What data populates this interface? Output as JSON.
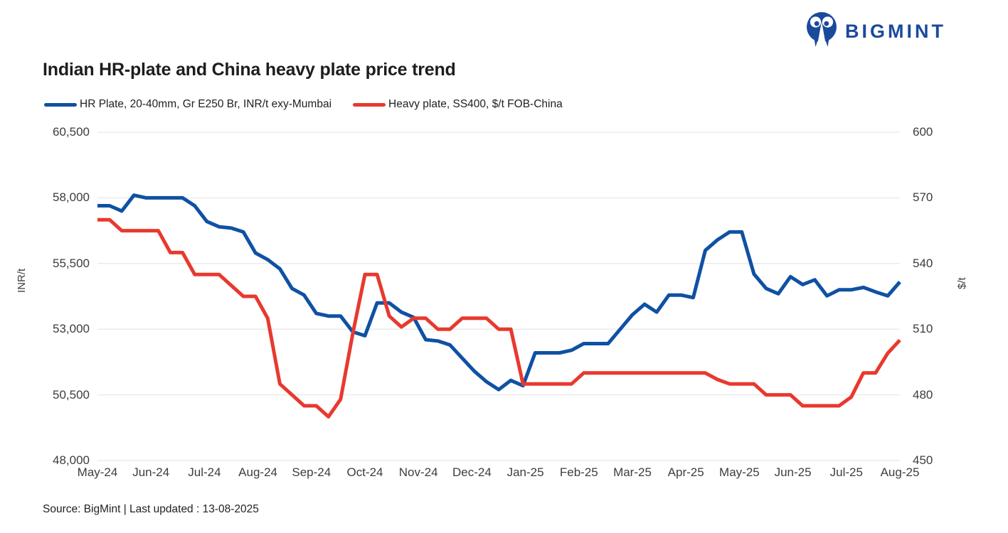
{
  "brand": {
    "name": "BIGMINT",
    "logo_color": "#1B4A9B"
  },
  "title": "Indian HR-plate and China heavy plate price trend",
  "legend": [
    {
      "label": "HR Plate, 20-40mm, Gr E250 Br, INR/t exy-Mumbai",
      "color": "#0F51A3"
    },
    {
      "label": "Heavy plate, SS400, $/t FOB-China",
      "color": "#E8392F"
    }
  ],
  "footer": "Source: BigMint | Last updated : 13-08-2025",
  "chart_data": {
    "type": "line",
    "title": "Indian HR-plate and China heavy plate price trend",
    "grid": "horizontal",
    "grid_color": "#EBEBEB",
    "legend_position": "top-left",
    "x_frequency": "weekly",
    "x_tick_labels": [
      "May-24",
      "Jun-24",
      "Jul-24",
      "Aug-24",
      "Sep-24",
      "Oct-24",
      "Nov-24",
      "Dec-24",
      "Jan-25",
      "Feb-25",
      "Mar-25",
      "Apr-25",
      "May-25",
      "Jun-25",
      "Jul-25",
      "Aug-25"
    ],
    "left_axis": {
      "label": "INR/t",
      "min": 48000,
      "max": 60500,
      "ticks": [
        "60,500",
        "58,000",
        "55,500",
        "53,000",
        "50,500",
        "48,000"
      ]
    },
    "right_axis": {
      "label": "$/t",
      "min": 450,
      "max": 600,
      "ticks": [
        "600",
        "570",
        "540",
        "510",
        "480",
        "450"
      ]
    },
    "series": [
      {
        "id": "hr-plate",
        "name": "HR Plate, 20-40mm, Gr E250 Br, INR/t exy-Mumbai",
        "axis": "left",
        "unit": "INR/t",
        "color": "#0F51A3",
        "values": [
          57700,
          57700,
          57500,
          58100,
          58000,
          58000,
          58000,
          58000,
          57700,
          57100,
          56900,
          56850,
          56700,
          55900,
          55650,
          55300,
          54550,
          54300,
          53600,
          53500,
          53500,
          52900,
          52750,
          54000,
          54000,
          53650,
          53450,
          52600,
          52550,
          52400,
          51900,
          51400,
          51000,
          50700,
          51050,
          50850,
          52100,
          52100,
          52100,
          52200,
          52450,
          52450,
          52450,
          53000,
          53550,
          53950,
          53650,
          54300,
          54300,
          54200,
          56000,
          56400,
          56700,
          56700,
          55100,
          54550,
          54350,
          55000,
          54700,
          54880,
          54270,
          54500,
          54500,
          54590,
          54420,
          54270,
          54800
        ]
      },
      {
        "id": "heavy-plate",
        "name": "Heavy plate, SS400, $/t FOB-China",
        "axis": "right",
        "unit": "$/t",
        "color": "#E8392F",
        "values": [
          560,
          560,
          555,
          555,
          555,
          555,
          545,
          545,
          535,
          535,
          535,
          530,
          525,
          525,
          515,
          485,
          480,
          475,
          475,
          470,
          478,
          508,
          535,
          535,
          516,
          511,
          515,
          515,
          510,
          510,
          515,
          515,
          515,
          510,
          510,
          485,
          485,
          485,
          485,
          485,
          490,
          490,
          490,
          490,
          490,
          490,
          490,
          490,
          490,
          490,
          490,
          487,
          485,
          485,
          485,
          480,
          480,
          480,
          475,
          475,
          475,
          475,
          479,
          490,
          490,
          499,
          505
        ]
      }
    ]
  }
}
